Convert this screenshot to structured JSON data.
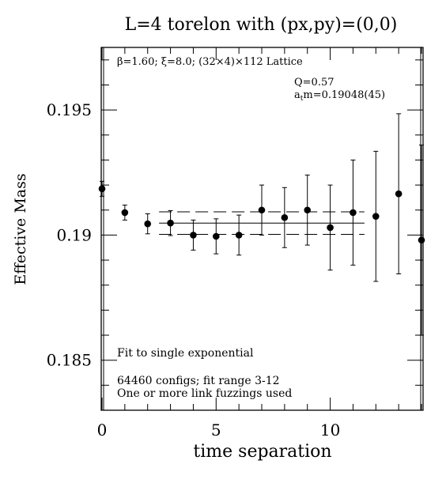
{
  "chart_data": {
    "type": "scatter",
    "title": "L=4 torelon with (px,py)=(0,0)",
    "xlabel": "time separation",
    "ylabel": "Effective Mass",
    "xlim": [
      0,
      14
    ],
    "ylim": [
      0.183,
      0.1975
    ],
    "x_ticks": [
      0,
      5,
      10
    ],
    "x_tick_labels": [
      "0",
      "5",
      "10"
    ],
    "y_ticks": [
      0.185,
      0.19,
      0.195
    ],
    "y_tick_labels": [
      "0.185",
      "0.19",
      "0.195"
    ],
    "grid": false,
    "annotations": {
      "lattice": "β=1.60; ξ=8.0; (32×4)×112 Lattice",
      "q": "Q=0.57",
      "fit_mass": "atm=0.19048(45)",
      "fit_mass_parts": {
        "prefix": "a",
        "sub": "t",
        "suffix": "m=0.19048(45)"
      },
      "fit_type": "Fit to single exponential",
      "configs": "64460 configs; fit range 3-12",
      "fuzzing": "One or more link fuzzings used"
    },
    "fit": {
      "x_range": [
        2.5,
        11.5
      ],
      "value": 0.19048,
      "error": 0.00045
    },
    "points": [
      {
        "x": 0,
        "y": 0.19185,
        "err": 0.0003
      },
      {
        "x": 1,
        "y": 0.1909,
        "err": 0.0003
      },
      {
        "x": 2,
        "y": 0.19045,
        "err": 0.0004
      },
      {
        "x": 3,
        "y": 0.19048,
        "err": 0.0005
      },
      {
        "x": 4,
        "y": 0.19,
        "err": 0.0006
      },
      {
        "x": 5,
        "y": 0.18995,
        "err": 0.0007
      },
      {
        "x": 6,
        "y": 0.19,
        "err": 0.0008
      },
      {
        "x": 7,
        "y": 0.191,
        "err": 0.001
      },
      {
        "x": 8,
        "y": 0.1907,
        "err": 0.0012
      },
      {
        "x": 9,
        "y": 0.191,
        "err": 0.0014
      },
      {
        "x": 10,
        "y": 0.1903,
        "err": 0.0017
      },
      {
        "x": 11,
        "y": 0.1909,
        "err": 0.0021
      },
      {
        "x": 12,
        "y": 0.19075,
        "err": 0.0026
      },
      {
        "x": 13,
        "y": 0.19165,
        "err": 0.0032
      },
      {
        "x": 14,
        "y": 0.1898,
        "err": 0.0038
      }
    ]
  }
}
